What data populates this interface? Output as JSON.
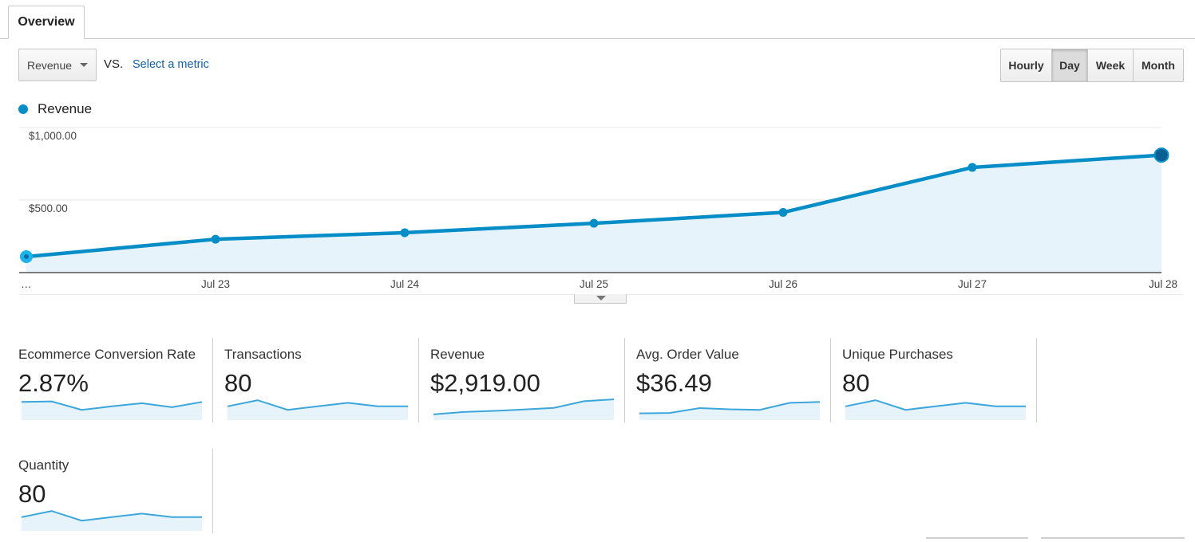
{
  "tabs": [
    {
      "label": "Overview"
    }
  ],
  "controls": {
    "primary_metric": "Revenue",
    "vs_label": "VS.",
    "select_metric_label": "Select a metric",
    "granularity": [
      {
        "label": "Hourly",
        "active": false
      },
      {
        "label": "Day",
        "active": true
      },
      {
        "label": "Week",
        "active": false
      },
      {
        "label": "Month",
        "active": false
      }
    ]
  },
  "legend": {
    "label": "Revenue",
    "color": "#058dc7"
  },
  "chart_data": {
    "type": "area",
    "x": [
      "…",
      "Jul 23",
      "Jul 24",
      "Jul 25",
      "Jul 26",
      "Jul 27",
      "Jul 28"
    ],
    "series": [
      {
        "name": "Revenue",
        "values": [
          110,
          230,
          275,
          340,
          415,
          725,
          810
        ]
      }
    ],
    "yticks": [
      {
        "value": 1000,
        "label": "$1,000.00"
      },
      {
        "value": 500,
        "label": "$500.00"
      }
    ],
    "ylim": [
      0,
      1000
    ],
    "grid": true,
    "line_color": "#058dc7",
    "fill_color": "#e6f3fa"
  },
  "metrics": [
    {
      "name": "Ecommerce Conversion Rate",
      "value": "2.87%",
      "spark": [
        0.85,
        0.88,
        0.4,
        0.6,
        0.78,
        0.55,
        0.85
      ]
    },
    {
      "name": "Transactions",
      "value": "80",
      "spark": [
        0.6,
        0.95,
        0.4,
        0.6,
        0.8,
        0.6,
        0.6
      ]
    },
    {
      "name": "Revenue",
      "value": "$2,919.00",
      "spark": [
        0.14,
        0.28,
        0.34,
        0.42,
        0.51,
        0.89,
        1.0
      ]
    },
    {
      "name": "Avg. Order Value",
      "value": "$36.49",
      "spark": [
        0.2,
        0.22,
        0.5,
        0.43,
        0.4,
        0.8,
        0.85
      ]
    },
    {
      "name": "Unique Purchases",
      "value": "80",
      "spark": [
        0.6,
        0.95,
        0.4,
        0.6,
        0.8,
        0.6,
        0.6
      ]
    },
    {
      "name": "Quantity",
      "value": "80",
      "spark": [
        0.6,
        0.95,
        0.4,
        0.6,
        0.8,
        0.6,
        0.6
      ]
    }
  ]
}
